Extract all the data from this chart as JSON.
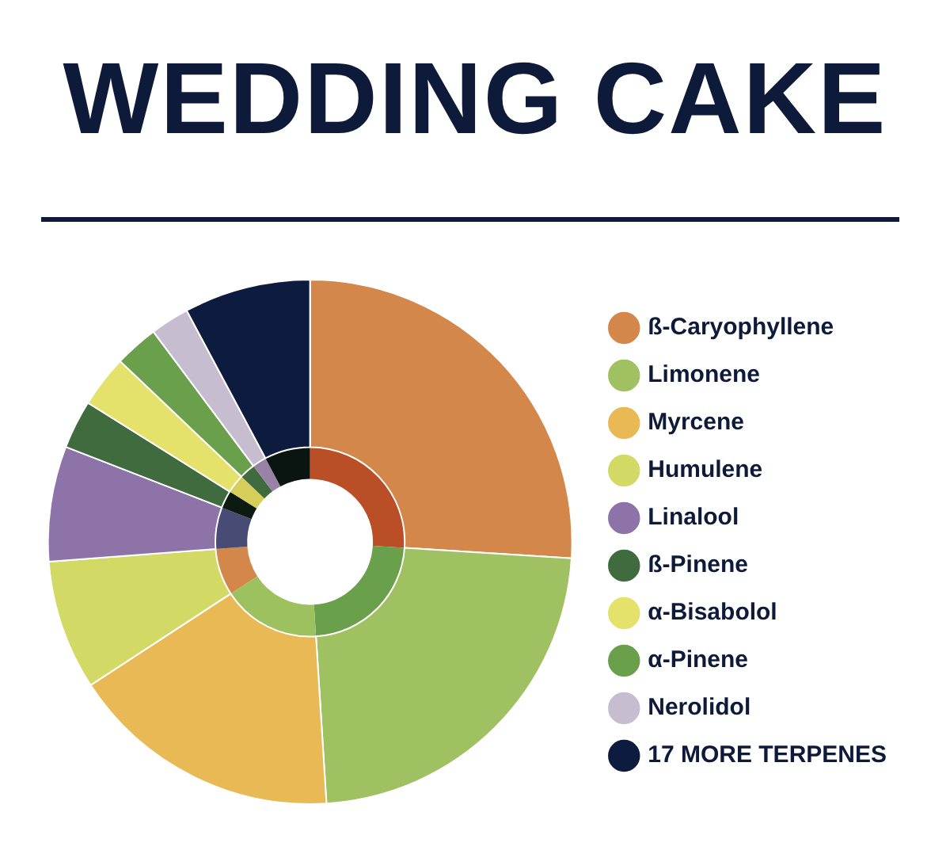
{
  "chart_data": {
    "type": "donut",
    "title": "WEDDING CAKE",
    "categories": [
      "ß-Caryophyllene",
      "Limonene",
      "Myrcene",
      "Humulene",
      "Linalool",
      "ß-Pinene",
      "α-Bisabolol",
      "α-Pinene",
      "Nerolidol",
      "17 MORE TERPENES"
    ],
    "series": [
      {
        "values": [
          26,
          23,
          16.8,
          8,
          7.1,
          3,
          3.2,
          2.7,
          2.4,
          7.8
        ],
        "colors": [
          "#d4874a",
          "#a0c161",
          "#e9b956",
          "#d3d965",
          "#8d73a8",
          "#3f6b3f",
          "#e4e26a",
          "#6a9f4c",
          "#c7bdd0",
          "#0d1b3e"
        ]
      },
      {
        "values": [
          26,
          23,
          16.8,
          8,
          7.1,
          3,
          3.2,
          2.7,
          2.4,
          7.8
        ],
        "colors": [
          "#ba4f27",
          "#6a9f4c",
          "#9dc15f",
          "#d4874a",
          "#484b73",
          "#0d1a12",
          "#d5cf5a",
          "#3f6b3f",
          "#9a82a6",
          "#0a1410"
        ]
      }
    ],
    "legend": "right"
  }
}
